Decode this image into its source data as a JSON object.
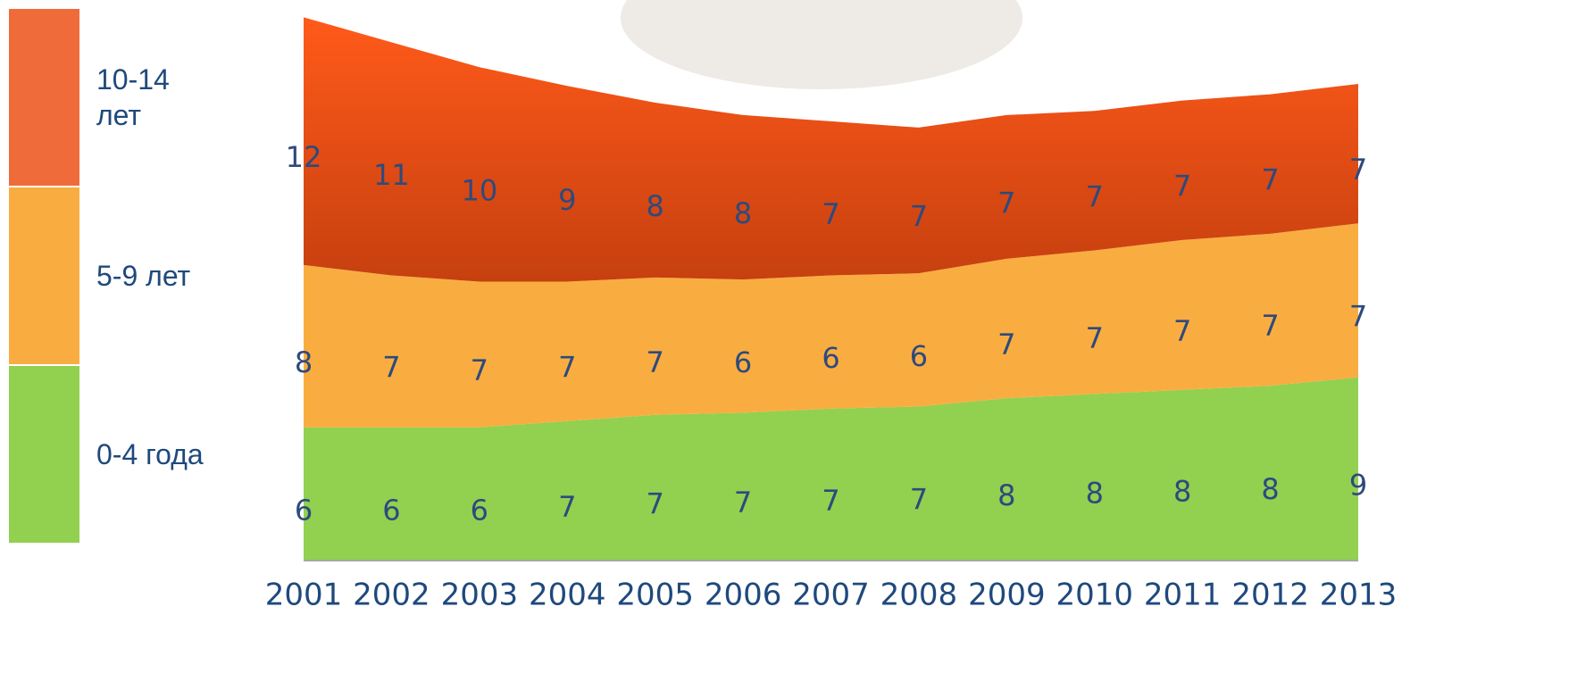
{
  "chart_data": {
    "type": "stacked_area",
    "categories": [
      "2001",
      "2002",
      "2003",
      "2004",
      "2005",
      "2006",
      "2007",
      "2008",
      "2009",
      "2010",
      "2011",
      "2012",
      "2013"
    ],
    "series": [
      {
        "name": "0-4 года",
        "color": "#92d050",
        "values": [
          6.4,
          6.4,
          6.4,
          6.7,
          7.0,
          7.1,
          7.3,
          7.4,
          7.8,
          8.0,
          8.2,
          8.4,
          8.8
        ],
        "value_labels": [
          "6",
          "6",
          "6",
          "7",
          "7",
          "7",
          "7",
          "7",
          "8",
          "8",
          "8",
          "8",
          "9"
        ]
      },
      {
        "name": "5-9 лет",
        "color": "#f9ad40",
        "values": [
          7.8,
          7.3,
          7.0,
          6.7,
          6.6,
          6.4,
          6.4,
          6.4,
          6.7,
          6.9,
          7.2,
          7.3,
          7.4
        ],
        "value_labels": [
          "8",
          "7",
          "7",
          "7",
          "7",
          "6",
          "6",
          "6",
          "7",
          "7",
          "7",
          "7",
          "7"
        ]
      },
      {
        "name": "10-14 лет",
        "color": "#e4521a",
        "values": [
          11.9,
          11.2,
          10.3,
          9.4,
          8.4,
          7.9,
          7.4,
          7.0,
          6.9,
          6.7,
          6.7,
          6.7,
          6.7
        ],
        "value_labels": [
          "12",
          "11",
          "10",
          "9",
          "8",
          "8",
          "7",
          "7",
          "7",
          "7",
          "7",
          "7",
          "7"
        ]
      }
    ],
    "ylim": [
      0,
      26.5
    ]
  }
}
